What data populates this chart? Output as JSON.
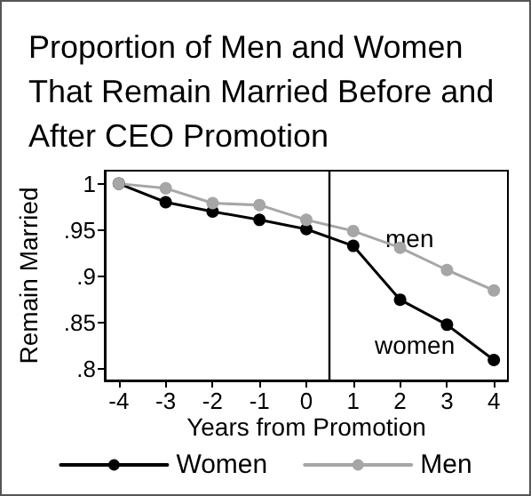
{
  "chart_data": {
    "type": "line",
    "title": "Proportion of Men and Women That Remain Married Before and After CEO Promotion",
    "xlabel": "Years from Promotion",
    "ylabel": "Remain Married",
    "x": [
      -4,
      -3,
      -2,
      -1,
      0,
      1,
      2,
      3,
      4
    ],
    "series": [
      {
        "name": "Women",
        "color": "#000000",
        "values": [
          1,
          0.98,
          0.97,
          0.961,
          0.951,
          0.933,
          0.875,
          0.848,
          0.81
        ]
      },
      {
        "name": "Men",
        "color": "#a6a6a6",
        "values": [
          1,
          0.995,
          0.979,
          0.977,
          0.961,
          0.949,
          0.931,
          0.907,
          0.885
        ]
      }
    ],
    "xlim": [
      -4.3,
      4.3
    ],
    "xticks": [
      -4,
      -3,
      -2,
      -1,
      0,
      1,
      2,
      3,
      4
    ],
    "ylim": [
      0.788,
      1.014
    ],
    "yticks": [
      {
        "value": 0.8,
        "label": ".8"
      },
      {
        "value": 0.85,
        "label": ".85"
      },
      {
        "value": 0.9,
        "label": ".9"
      },
      {
        "value": 0.95,
        "label": ".95"
      },
      1
    ],
    "ref_lines": [
      {
        "axis": "x",
        "value": 0.5,
        "color": "#000000"
      }
    ],
    "annotations": [
      "men",
      "women"
    ],
    "legend": "bottom",
    "grid": false,
    "marker": "circle",
    "line_style": "solid"
  }
}
